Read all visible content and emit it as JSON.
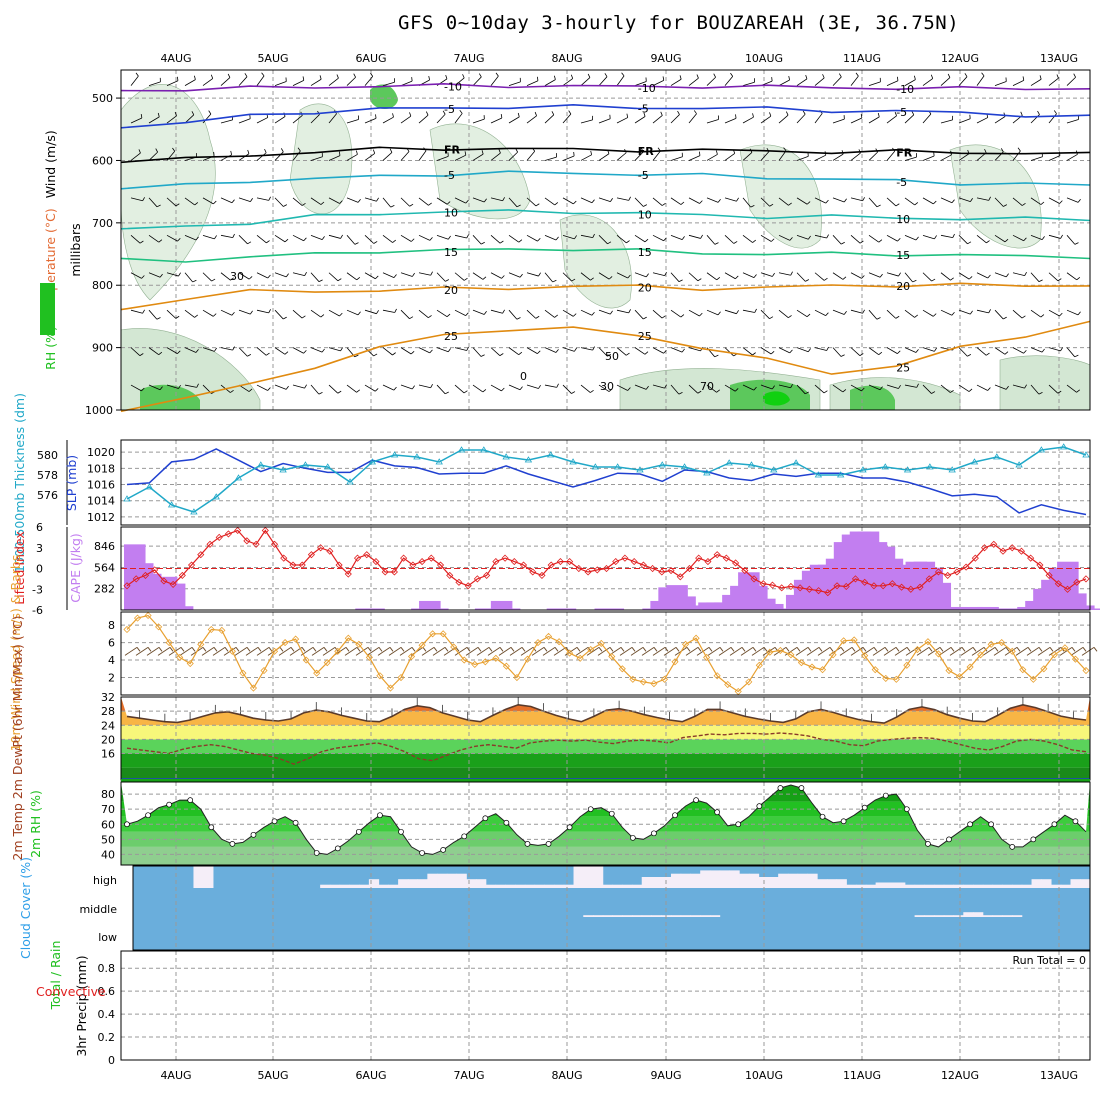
{
  "title": "GFS 0~10day 3-hourly for BOUZAREAH (3E, 36.75N)",
  "colors": {
    "purple": "#7a1fb0",
    "blue": "#2040d0",
    "cyan": "#20a8c8",
    "ltblue": "#2f9fe8",
    "teal": "#20b8b0",
    "green": "#20c080",
    "orange": "#e08a10",
    "red": "#e02020",
    "cape": "#c27ef0",
    "windspeed": "#e8a030",
    "rh_green": "#20c020",
    "cloud_bg": "#6aaedc",
    "cloud_fill": "#f5eef8",
    "magenta": "#e0208f"
  },
  "chart_data": [
    {
      "id": "profile",
      "type": "heatmap",
      "title": "Wind (m/s), Temperature (°C), RH (%)",
      "ylabel": "millibars",
      "ylabel_parts": [
        "Wind (m/s)",
        "Temperature (°C)",
        "RH (%)"
      ],
      "yticks": [
        500,
        600,
        700,
        800,
        900,
        1000
      ],
      "ylim": [
        1000,
        455
      ],
      "rh_legend": [
        "RH (%)"
      ],
      "isotherms": [
        {
          "label": "-10",
          "color": "purple",
          "pressure": [
            488,
            486,
            484,
            482,
            481,
            480,
            480,
            481,
            482,
            481,
            482,
            483,
            484,
            485,
            484,
            485
          ]
        },
        {
          "label": "-5",
          "color": "blue",
          "pressure": [
            545,
            540,
            528,
            522,
            518,
            516,
            514,
            514,
            515,
            516,
            517,
            520,
            521,
            524,
            527,
            530
          ]
        },
        {
          "label": "FR",
          "color": "#000",
          "pressure": [
            600,
            598,
            592,
            586,
            582,
            581,
            581,
            583,
            583,
            584,
            585,
            586,
            586,
            587,
            588,
            590
          ]
        },
        {
          "label": "-5",
          "color": "cyan",
          "pressure": [
            645,
            640,
            632,
            630,
            625,
            622,
            620,
            620,
            622,
            624,
            627,
            630,
            633,
            636,
            638,
            640
          ]
        },
        {
          "label": "10",
          "color": "teal",
          "pressure": [
            712,
            705,
            700,
            690,
            685,
            682,
            682,
            682,
            685,
            688,
            690,
            690,
            692,
            693,
            694,
            694
          ]
        },
        {
          "label": "15",
          "color": "green",
          "pressure": [
            760,
            760,
            755,
            750,
            745,
            745,
            742,
            742,
            745,
            748,
            750,
            750,
            750,
            752,
            754,
            754
          ]
        },
        {
          "label": "20",
          "color": "orange",
          "pressure": [
            840,
            820,
            810,
            810,
            808,
            806,
            804,
            802,
            802,
            805,
            805,
            800,
            800,
            800,
            800,
            800
          ]
        },
        {
          "label": "25",
          "color": "orange",
          "pressure": [
            1000,
            980,
            960,
            930,
            900,
            880,
            870,
            870,
            880,
            900,
            920,
            940,
            930,
            900,
            880,
            860
          ]
        }
      ],
      "barbs": {
        "rows": [
          480,
          540,
          600,
          660,
          720,
          780,
          840,
          900,
          960
        ]
      },
      "extra_labels": [
        "30",
        "30",
        "50",
        "70",
        "0"
      ]
    },
    {
      "id": "slp",
      "type": "line",
      "ylabel_left": "1000-500mb Thickness (dm)",
      "ylabel_right": "SLP (mb)",
      "left_ticks": [
        576,
        578,
        580
      ],
      "right_ticks": [
        1012,
        1014,
        1016,
        1018,
        1020
      ],
      "series": [
        {
          "name": "SLP (mb)",
          "color": "blue",
          "values": [
            1016.0,
            1016.2,
            1018.8,
            1019.1,
            1020.4,
            1019.0,
            1017.6,
            1018.6,
            1018.0,
            1017.5,
            1017.5,
            1019.0,
            1018.3,
            1018.1,
            1017.3,
            1017.4,
            1017.4,
            1018.3,
            1017.3,
            1016.5,
            1015.7,
            1016.5,
            1017.4,
            1017.3,
            1016.4,
            1017.8,
            1017.6,
            1016.8,
            1016.5,
            1017.3,
            1017.0,
            1017.4,
            1017.4,
            1016.8,
            1016.8,
            1016.3,
            1015.5,
            1014.6,
            1014.8,
            1014.5,
            1012.5,
            1013.5,
            1012.8,
            1012.3
          ]
        },
        {
          "name": "Thickness (dm)",
          "color": "cyan",
          "values": [
            575.6,
            576.8,
            575.0,
            574.3,
            575.8,
            577.7,
            579.0,
            578.5,
            579.0,
            578.8,
            577.3,
            579.3,
            580.0,
            579.8,
            579.3,
            580.5,
            580.5,
            579.8,
            579.5,
            580.0,
            579.3,
            578.8,
            578.8,
            578.5,
            579.0,
            578.8,
            578.2,
            579.2,
            579.0,
            578.5,
            579.2,
            578.0,
            578.0,
            578.5,
            578.8,
            578.5,
            578.8,
            578.5,
            579.3,
            579.8,
            579.0,
            580.5,
            580.8,
            580.0
          ]
        }
      ]
    },
    {
      "id": "cape",
      "type": "bar",
      "ylabel_left": "Lifted Index",
      "ylabel_right": "CAPE (J/kg)",
      "left_ticks": [
        "-6",
        "-3",
        "0",
        "3",
        "6"
      ],
      "right_ticks": [
        282,
        564,
        846
      ],
      "cape": [
        870,
        620,
        480,
        400,
        440,
        350,
        50,
        0,
        0,
        0,
        0,
        0,
        0,
        0,
        0,
        0,
        0,
        0,
        0,
        0,
        0,
        0,
        0,
        0,
        0,
        0,
        0,
        0,
        0,
        20,
        20,
        0,
        0,
        0,
        0,
        0,
        20,
        120,
        20,
        0,
        0,
        0,
        0,
        0,
        20,
        20,
        120,
        20,
        0,
        0,
        0,
        0,
        0,
        20,
        20,
        0,
        0,
        0,
        0,
        20,
        20,
        0,
        0,
        0,
        0,
        20,
        120,
        300,
        330,
        180,
        60,
        60,
        100,
        100,
        100,
        200,
        320,
        500,
        320,
        150,
        80,
        0,
        20,
        200,
        400,
        520,
        600,
        600,
        680,
        900,
        1000,
        1040,
        1040,
        900,
        840,
        680,
        520,
        600,
        640,
        640,
        560,
        360,
        40,
        40,
        20,
        40,
        40,
        40,
        20,
        0,
        20,
        20,
        40,
        120,
        280,
        400,
        560,
        640,
        220,
        60,
        20
      ],
      "lifted_index": [
        -2.5,
        -1.5,
        -1.0,
        -0.2,
        -1.8,
        -2.3,
        -1.0,
        0.5,
        2.0,
        3.5,
        4.5,
        5.0,
        5.5,
        4.0,
        3.5,
        5.5,
        3.5,
        1.5,
        0.5,
        0.5,
        2.0,
        3.0,
        2.5,
        0.5,
        -0.8,
        1.5,
        2.0,
        1.0,
        -0.5,
        -0.5,
        1.5,
        0.5,
        1.0,
        1.5,
        0.5,
        -1.0,
        -2.0,
        -2.5,
        -1.5,
        -1.0,
        1.0,
        1.5,
        1.0,
        0.5,
        -0.5,
        -1.0,
        0.5,
        1.0,
        1.0,
        0.0,
        -0.5,
        -0.2,
        0.0,
        1.0,
        1.5,
        1.0,
        0.5,
        0.0,
        -0.5,
        -0.3,
        -1.2,
        0.0,
        1.5,
        1.0,
        2.0,
        1.5,
        0.8,
        -0.3,
        -1.5,
        -2.2,
        -2.4,
        -2.8,
        -2.6,
        -2.8,
        -3.0,
        -3.2,
        -3.5,
        -2.5,
        -2.6,
        -1.5,
        -2.0,
        -2.5,
        -2.5,
        -2.2,
        -2.7,
        -3.0,
        -2.7,
        -1.5,
        -0.5,
        -1.0,
        -0.5,
        0.2,
        1.5,
        3.0,
        3.5,
        2.5,
        3.0,
        2.5,
        1.5,
        0.5,
        -1.0,
        -2.2,
        -3.0,
        -2.0,
        -1.5
      ]
    },
    {
      "id": "wind10m",
      "type": "line",
      "ylabel": "10m Wind Speed (m/s) & Barbs",
      "yticks": [
        2,
        4,
        6,
        8
      ],
      "ylim": [
        0,
        9.5
      ],
      "values": [
        7.5,
        8.8,
        9.1,
        7.8,
        6.0,
        4.3,
        3.6,
        5.8,
        7.5,
        7.4,
        5.0,
        2.5,
        0.8,
        2.8,
        5.0,
        6.0,
        6.4,
        4.0,
        2.5,
        3.7,
        5.0,
        6.5,
        5.8,
        4.3,
        2.2,
        0.8,
        2.0,
        4.4,
        5.7,
        7.0,
        7.0,
        5.5,
        4.0,
        3.5,
        3.8,
        4.2,
        3.3,
        2.0,
        4.1,
        6.0,
        6.7,
        6.1,
        4.8,
        4.2,
        5.2,
        5.9,
        4.4,
        3.0,
        1.8,
        1.5,
        1.3,
        1.8,
        3.8,
        5.8,
        6.5,
        4.3,
        2.2,
        1.2,
        0.4,
        1.5,
        3.4,
        4.9,
        5.1,
        4.6,
        3.7,
        3.2,
        2.9,
        4.6,
        6.2,
        6.3,
        4.5,
        2.9,
        1.9,
        1.8,
        3.4,
        5.2,
        6.1,
        4.7,
        2.8,
        2.1,
        3.2,
        4.6,
        5.8,
        6.0,
        5.0,
        2.9,
        1.8,
        3.0,
        4.6,
        5.4,
        4.1,
        2.8
      ]
    },
    {
      "id": "temp2m",
      "type": "area",
      "ylabel": "2m Temp 2m DewPt (6hr Min/Max) (°C)",
      "yticks": [
        16,
        20,
        24,
        28,
        32
      ],
      "ylim": [
        8.5,
        32
      ],
      "temp": [
        26.5,
        26.0,
        25.5,
        25.0,
        24.8,
        25.5,
        26.5,
        27.5,
        27.8,
        27.0,
        26.0,
        25.5,
        25.2,
        25.8,
        27.5,
        28.3,
        27.8,
        26.8,
        26.0,
        25.2,
        25.0,
        26.5,
        28.5,
        29.5,
        29.0,
        27.5,
        26.5,
        25.5,
        25.0,
        26.8,
        28.5,
        29.8,
        29.3,
        28.0,
        26.8,
        25.8,
        25.0,
        26.5,
        28.3,
        28.7,
        28.0,
        27.0,
        26.2,
        25.5,
        25.0,
        26.5,
        28.5,
        28.5,
        27.5,
        26.5,
        25.8,
        25.2,
        24.8,
        25.8,
        27.8,
        28.5,
        27.6,
        26.5,
        25.6,
        25.0,
        24.6,
        26.3,
        28.5,
        29.2,
        28.4,
        27.0,
        26.0,
        25.2,
        25.0,
        26.8,
        28.8,
        29.8,
        29.0,
        27.8,
        26.6,
        25.9,
        25.5
      ],
      "dewpt": [
        17.5,
        17.0,
        16.5,
        16.0,
        17.2,
        18.0,
        18.5,
        18.0,
        17.0,
        16.0,
        15.5,
        14.5,
        13.0,
        14.5,
        16.5,
        17.5,
        18.0,
        18.5,
        19.0,
        18.0,
        16.5,
        14.5,
        14.0,
        15.5,
        17.0,
        18.0,
        18.5,
        18.0,
        17.5,
        19.0,
        19.5,
        19.8,
        19.5,
        19.8,
        19.2,
        18.8,
        19.5,
        19.8,
        19.5,
        19.0,
        20.5,
        21.0,
        21.5,
        21.3,
        21.7,
        21.7,
        21.5,
        21.8,
        21.5,
        21.0,
        20.0,
        19.5,
        18.5,
        18.2,
        19.5,
        20.0,
        20.3,
        20.5,
        20.3,
        19.5,
        18.5,
        17.5,
        17.0,
        18.0,
        19.5,
        20.0,
        19.5,
        18.5,
        17.0,
        16.5
      ]
    },
    {
      "id": "rh2m",
      "type": "area",
      "ylabel": "2m RH (%)",
      "yticks": [
        40,
        50,
        60,
        70,
        80
      ],
      "ylim": [
        33,
        88
      ],
      "values": [
        60,
        62,
        66,
        71,
        73,
        76,
        76,
        70,
        58,
        50,
        47,
        48,
        53,
        58,
        62,
        65,
        61,
        50,
        41,
        40,
        44,
        49,
        55,
        61,
        66,
        65,
        55,
        45,
        41,
        40,
        43,
        48,
        52,
        58,
        64,
        67,
        61,
        53,
        47,
        46,
        47,
        52,
        58,
        65,
        70,
        71,
        67,
        58,
        51,
        50,
        54,
        59,
        66,
        72,
        76,
        74,
        68,
        59,
        60,
        65,
        72,
        78,
        84,
        86,
        84,
        74,
        65,
        61,
        62,
        66,
        71,
        76,
        79,
        80,
        70,
        56,
        47,
        45,
        50,
        55,
        60,
        65,
        60,
        50,
        45,
        45,
        50,
        55,
        60,
        66,
        62,
        55
      ]
    },
    {
      "id": "cloud",
      "type": "area",
      "ylabel": "Cloud Cover (%)",
      "levels": [
        "high",
        "middle",
        "low"
      ],
      "high": [
        0,
        0,
        0,
        0,
        0,
        0,
        20,
        20,
        0,
        0,
        0,
        0,
        0,
        0,
        0,
        0,
        0,
        0,
        0,
        3,
        3,
        3,
        3,
        3,
        8,
        3,
        3,
        8,
        8,
        8,
        13,
        13,
        13,
        13,
        8,
        8,
        3,
        3,
        3,
        3,
        3,
        3,
        3,
        3,
        3,
        20,
        20,
        20,
        3,
        3,
        3,
        3,
        10,
        10,
        10,
        13,
        13,
        13,
        16,
        16,
        16,
        16,
        13,
        13,
        10,
        10,
        13,
        13,
        13,
        13,
        8,
        8,
        8,
        3,
        3,
        3,
        5,
        5,
        5,
        3,
        3,
        3,
        3,
        3,
        3,
        3,
        3,
        3,
        3,
        3,
        3,
        3,
        8,
        8,
        3,
        3,
        8,
        8
      ],
      "middle": [
        0,
        0,
        0,
        0,
        0,
        0,
        0,
        0,
        0,
        0,
        0,
        0,
        0,
        0,
        0,
        0,
        0,
        0,
        0,
        0,
        0,
        0,
        0,
        0,
        0,
        0,
        0,
        0,
        0,
        0,
        0,
        0,
        0,
        0,
        0,
        0,
        0,
        0,
        0,
        0,
        0,
        0,
        0,
        0,
        0,
        0,
        3,
        3,
        3,
        3,
        3,
        3,
        3,
        3,
        3,
        3,
        3,
        3,
        3,
        3,
        0,
        0,
        0,
        0,
        0,
        0,
        0,
        0,
        0,
        0,
        0,
        0,
        0,
        0,
        0,
        0,
        0,
        0,
        0,
        0,
        3,
        3,
        3,
        3,
        3,
        8,
        8,
        3,
        3,
        3,
        3,
        0,
        0,
        0,
        0,
        0,
        0,
        0,
        0
      ],
      "low": []
    },
    {
      "id": "precip",
      "type": "bar",
      "ylabel": "3hr Precip (mm)",
      "ylabel_green": "Total / Rain",
      "ylabel_red": "Convective",
      "yticks": [
        "0",
        "0.2",
        "0.4",
        "0.6",
        "0.8"
      ],
      "ylim": [
        0,
        0.95
      ],
      "run_total": "Run Total = 0",
      "values": []
    }
  ],
  "x_axis": {
    "top_labels": [
      "4AUG",
      "5AUG",
      "6AUG",
      "7AUG",
      "8AUG",
      "9AUG",
      "10AUG",
      "11AUG",
      "12AUG",
      "13AUG"
    ],
    "bottom_labels": [
      "4AUG",
      "5AUG",
      "6AUG",
      "7AUG",
      "8AUG",
      "9AUG",
      "10AUG",
      "11AUG",
      "12AUG",
      "13AUG"
    ]
  }
}
